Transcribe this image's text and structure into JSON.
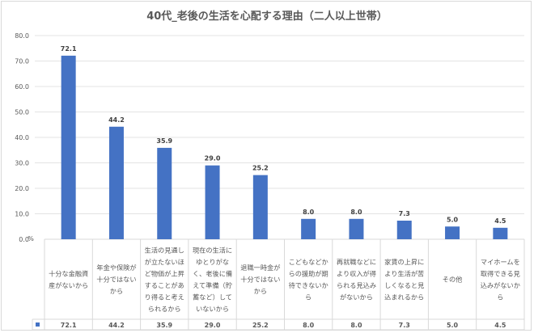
{
  "chart_data": {
    "type": "bar",
    "title": "40代_老後の生活を心配する理由（二人以上世帯）",
    "ylabel": "%",
    "ylim": [
      0,
      80
    ],
    "yticks": [
      "0.0",
      "10.0",
      "20.0",
      "30.0",
      "40.0",
      "50.0",
      "60.0",
      "70.0",
      "80.0"
    ],
    "grid": true,
    "series_color": "#4472c4",
    "categories": [
      [
        "十分な金融資",
        "産がないから"
      ],
      [
        "年金や保険が",
        "十分ではない",
        "から"
      ],
      [
        "生活の見通し",
        "が立たないほ",
        "ど物価が上昇",
        "することがあ",
        "り得ると考え",
        "られるから"
      ],
      [
        "現在の生活に",
        "ゆとりがな",
        "く、老後に備",
        "えて準備（貯",
        "蓄など）して",
        "いないから"
      ],
      [
        "退職一時金が",
        "十分ではない",
        "から"
      ],
      [
        "こどもなどか",
        "らの援助が期",
        "待できないか",
        "ら"
      ],
      [
        "再就職などに",
        "より収入が得",
        "られる見込み",
        "がないから"
      ],
      [
        "家賃の上昇に",
        "より生活が苦",
        "しくなると見",
        "込まれるから"
      ],
      [
        "その他"
      ],
      [
        "マイホームを",
        "取得できる見",
        "込みがないか",
        "ら"
      ]
    ],
    "values": [
      72.1,
      44.2,
      35.9,
      29.0,
      25.2,
      8.0,
      8.0,
      7.3,
      5.0,
      4.5
    ],
    "value_labels": [
      "72.1",
      "44.2",
      "35.9",
      "29.0",
      "25.2",
      "8.0",
      "8.0",
      "7.3",
      "5.0",
      "4.5"
    ]
  }
}
